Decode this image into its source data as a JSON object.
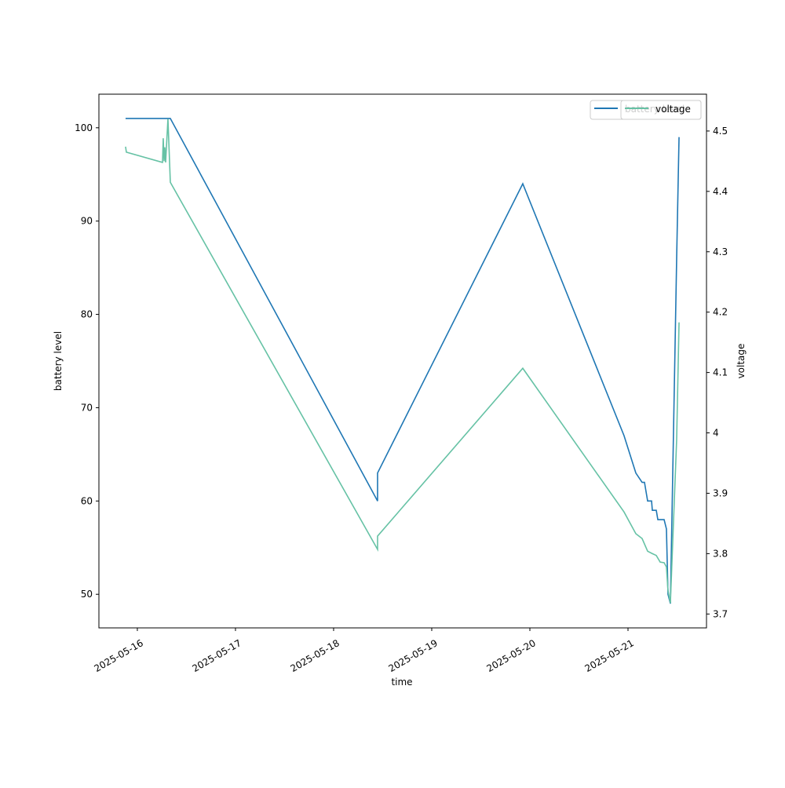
{
  "chart_data": {
    "type": "line",
    "xlabel": "time",
    "ylabel": "battery level",
    "y2label": "voltage",
    "xlim": [
      "2025-05-15 14:36",
      "2025-05-21 19:12"
    ],
    "xticks": [
      "2025-05-16",
      "2025-05-17",
      "2025-05-18",
      "2025-05-19",
      "2025-05-20",
      "2025-05-21"
    ],
    "ylim": [
      46.4,
      103.6
    ],
    "yticks": [
      50,
      60,
      70,
      80,
      90,
      100
    ],
    "y2lim": [
      3.677,
      4.561
    ],
    "y2ticks": [
      3.7,
      3.8,
      3.9,
      4.0,
      4.1,
      4.2,
      4.3,
      4.4,
      4.5
    ],
    "legend": "upper right",
    "series": [
      {
        "name": "battery level",
        "color": "#1f77b4",
        "axis": "y",
        "x": [
          "2025-05-15 21:07",
          "2025-05-16 08:04",
          "2025-05-18 10:45",
          "2025-05-18 10:45",
          "2025-05-19 22:16",
          "2025-05-20 23:02",
          "2025-05-21 01:55",
          "2025-05-21 03:27",
          "2025-05-21 04:02",
          "2025-05-21 04:48",
          "2025-05-21 05:46",
          "2025-05-21 05:57",
          "2025-05-21 06:55",
          "2025-05-21 07:18",
          "2025-05-21 08:50",
          "2025-05-21 09:24",
          "2025-05-21 09:47",
          "2025-05-21 10:22",
          "2025-05-21 11:54",
          "2025-05-21 12:29"
        ],
        "values": [
          101,
          101,
          60,
          63,
          94,
          67,
          63,
          62,
          62,
          60,
          60,
          59,
          59,
          58,
          58,
          57,
          50,
          49,
          86,
          99
        ]
      },
      {
        "name": "voltage",
        "color": "#66c2a5",
        "axis": "y2",
        "x": [
          "2025-05-15 21:07",
          "2025-05-15 21:19",
          "2025-05-16 06:09",
          "2025-05-16 06:20",
          "2025-05-16 06:32",
          "2025-05-16 06:43",
          "2025-05-16 06:55",
          "2025-05-16 07:29",
          "2025-05-16 08:04",
          "2025-05-18 10:45",
          "2025-05-18 10:45",
          "2025-05-19 22:16",
          "2025-05-20 23:02",
          "2025-05-21 01:55",
          "2025-05-21 03:27",
          "2025-05-21 04:48",
          "2025-05-21 05:57",
          "2025-05-21 06:55",
          "2025-05-21 07:52",
          "2025-05-21 08:50",
          "2025-05-21 09:24",
          "2025-05-21 09:47",
          "2025-05-21 10:22",
          "2025-05-21 11:54",
          "2025-05-21 12:29"
        ],
        "values": [
          4.474,
          4.465,
          4.448,
          4.488,
          4.45,
          4.473,
          4.448,
          4.52,
          4.415,
          3.807,
          3.829,
          4.107,
          3.869,
          3.833,
          3.825,
          3.804,
          3.8,
          3.797,
          3.786,
          3.785,
          3.778,
          3.739,
          3.718,
          3.989,
          4.183
        ]
      }
    ]
  }
}
